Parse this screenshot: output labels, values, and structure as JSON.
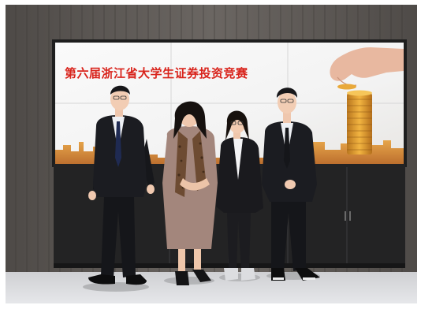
{
  "banner": {
    "title": "第六届浙江省大学生证券投资竞赛"
  }
}
